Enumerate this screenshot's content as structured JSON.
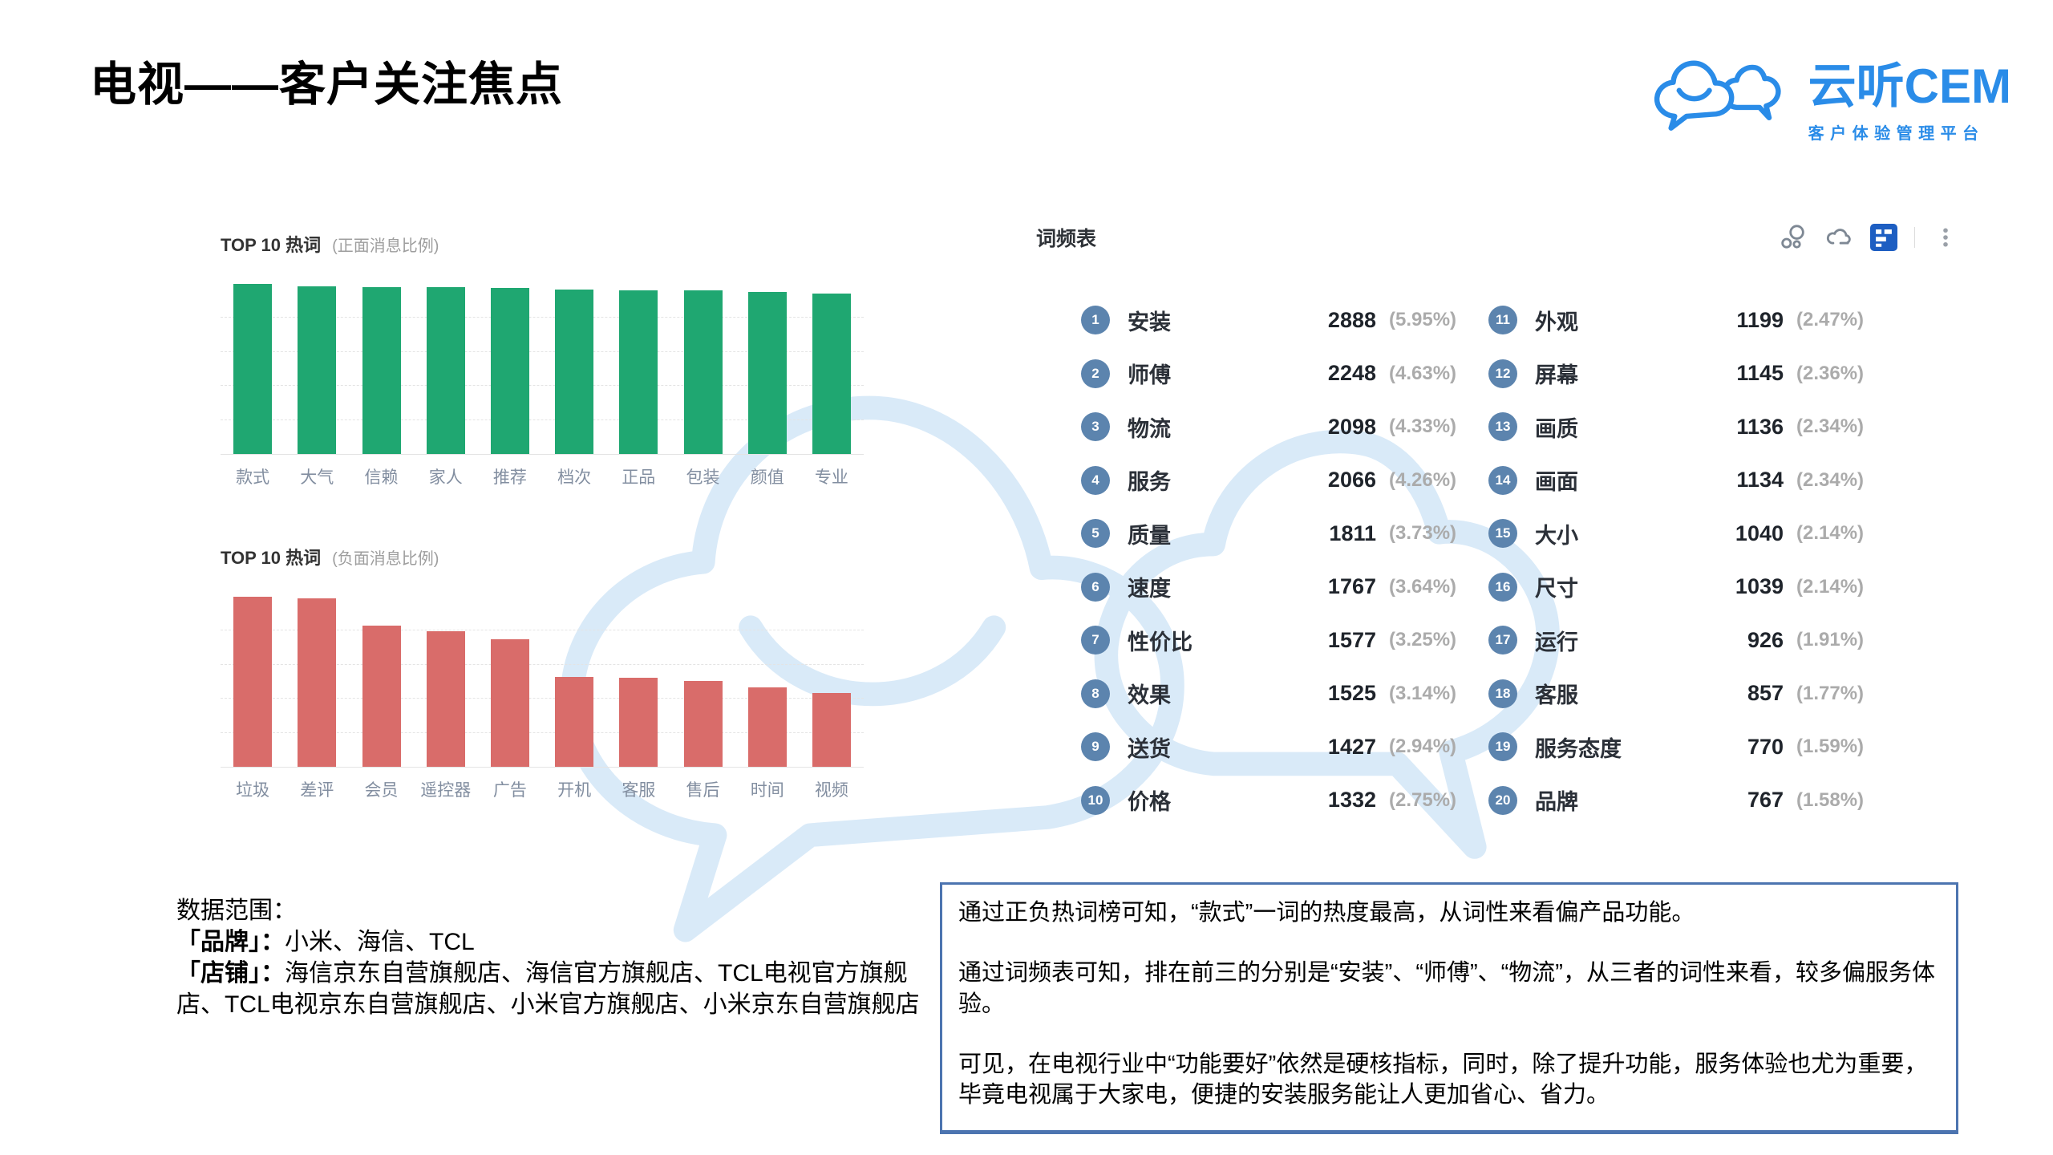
{
  "page_title": "电视——客户关注焦点",
  "logo": {
    "brand": "云听CEM",
    "tagline": "客户体验管理平台",
    "brand_color": "#2A8CE8"
  },
  "chart_data": [
    {
      "type": "bar",
      "title": "TOP 10 热词",
      "subtitle": "(正面消息比例)",
      "categories": [
        "款式",
        "大气",
        "信赖",
        "家人",
        "推荐",
        "档次",
        "正品",
        "包装",
        "颜值",
        "专业"
      ],
      "values_pct_of_max": [
        100,
        98.4,
        98.1,
        98.1,
        97.5,
        96.9,
        96.4,
        96.4,
        95.3,
        94.2
      ],
      "bar_color": "#1FA771",
      "xlabel": "",
      "ylabel": "",
      "axis_values_shown": false,
      "grid": "dashed-horizontal",
      "legend": "none"
    },
    {
      "type": "bar",
      "title": "TOP 10 热词",
      "subtitle": "(负面消息比例)",
      "categories": [
        "垃圾",
        "差评",
        "会员",
        "遥控器",
        "广告",
        "开机",
        "客服",
        "售后",
        "时间",
        "视频"
      ],
      "values_pct_of_max": [
        100,
        99.1,
        82.8,
        79.9,
        75.2,
        52.8,
        52.5,
        50.5,
        46.7,
        43.4
      ],
      "bar_color": "#D96C6A",
      "xlabel": "",
      "ylabel": "",
      "axis_values_shown": false,
      "grid": "dashed-horizontal",
      "legend": "none"
    },
    {
      "type": "table",
      "title": "词频表",
      "columns": [
        "rank",
        "word",
        "count",
        "share_pct"
      ],
      "rows": [
        {
          "rank": 1,
          "word": "安装",
          "count": 2888,
          "share_pct": 5.95
        },
        {
          "rank": 2,
          "word": "师傅",
          "count": 2248,
          "share_pct": 4.63
        },
        {
          "rank": 3,
          "word": "物流",
          "count": 2098,
          "share_pct": 4.33
        },
        {
          "rank": 4,
          "word": "服务",
          "count": 2066,
          "share_pct": 4.26
        },
        {
          "rank": 5,
          "word": "质量",
          "count": 1811,
          "share_pct": 3.73
        },
        {
          "rank": 6,
          "word": "速度",
          "count": 1767,
          "share_pct": 3.64
        },
        {
          "rank": 7,
          "word": "性价比",
          "count": 1577,
          "share_pct": 3.25
        },
        {
          "rank": 8,
          "word": "效果",
          "count": 1525,
          "share_pct": 3.14
        },
        {
          "rank": 9,
          "word": "送货",
          "count": 1427,
          "share_pct": 2.94
        },
        {
          "rank": 10,
          "word": "价格",
          "count": 1332,
          "share_pct": 2.75
        },
        {
          "rank": 11,
          "word": "外观",
          "count": 1199,
          "share_pct": 2.47
        },
        {
          "rank": 12,
          "word": "屏幕",
          "count": 1145,
          "share_pct": 2.36
        },
        {
          "rank": 13,
          "word": "画质",
          "count": 1136,
          "share_pct": 2.34
        },
        {
          "rank": 14,
          "word": "画面",
          "count": 1134,
          "share_pct": 2.34
        },
        {
          "rank": 15,
          "word": "大小",
          "count": 1040,
          "share_pct": 2.14
        },
        {
          "rank": 16,
          "word": "尺寸",
          "count": 1039,
          "share_pct": 2.14
        },
        {
          "rank": 17,
          "word": "运行",
          "count": 926,
          "share_pct": 1.91
        },
        {
          "rank": 18,
          "word": "客服",
          "count": 857,
          "share_pct": 1.77
        },
        {
          "rank": 19,
          "word": "服务态度",
          "count": 770,
          "share_pct": 1.59
        },
        {
          "rank": 20,
          "word": "品牌",
          "count": 767,
          "share_pct": 1.58
        }
      ],
      "badge_color": "#5C84AE"
    }
  ],
  "toolbar": {
    "icons": [
      "bubble-chart-icon",
      "word-cloud-icon",
      "table-view-icon",
      "more-menu-icon"
    ],
    "active": "table-view-icon",
    "active_color": "#1D5EC2",
    "icon_color": "#7E8894"
  },
  "datascope": {
    "heading": "数据范围：",
    "brand_label": "「品牌」：",
    "brand_value": "小米、海信、TCL",
    "shop_label": "「店铺」：",
    "shop_value": "海信京东自营旗舰店、海信官方旗舰店、TCL电视官方旗舰店、TCL电视京东自营旗舰店、小米官方旗舰店、小米京东自营旗舰店"
  },
  "analysis": {
    "p1": "通过正负热词榜可知，“款式”一词的热度最高，从词性来看偏产品功能。",
    "p2": "通过词频表可知，排在前三的分别是“安装”、“师傅”、“物流”，从三者的词性来看，较多偏服务体验。",
    "p3": "可见，在电视行业中“功能要好”依然是硬核指标，同时，除了提升功能，服务体验也尤为重要，毕竟电视属于大家电，便捷的安装服务能让人更加省心、省力。"
  }
}
